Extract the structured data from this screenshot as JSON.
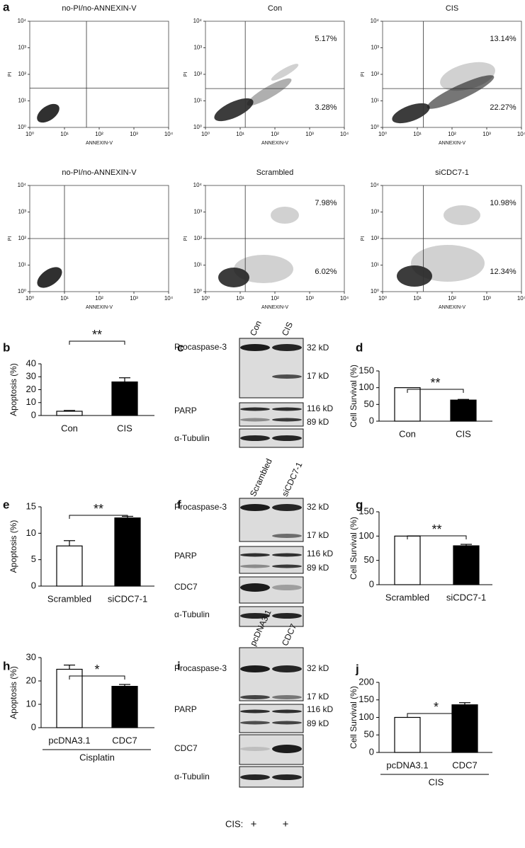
{
  "chart_data": [
    {
      "type": "flow",
      "panel": "a",
      "title": "no-PI/no-ANNEXIN-V",
      "x_label": "ANNEXIN-V",
      "y_label": "PI",
      "log_x": true,
      "log_y": true,
      "xlim": [
        1,
        10000
      ],
      "ylim": [
        1,
        10000
      ],
      "xticks": [
        {
          "value": 1,
          "label": "10⁰"
        },
        {
          "value": 10,
          "label": "10¹"
        },
        {
          "value": 100,
          "label": "10²"
        },
        {
          "value": 1000,
          "label": "10³"
        },
        {
          "value": 10000,
          "label": "10⁴"
        }
      ],
      "yticks": [
        {
          "value": 1,
          "label": "10⁰"
        },
        {
          "value": 10,
          "label": "10¹"
        },
        {
          "value": 100,
          "label": "10²"
        },
        {
          "value": 1000,
          "label": "10³"
        },
        {
          "value": 10000,
          "label": "10⁴"
        }
      ],
      "gate": [
        43,
        30
      ],
      "annotations": []
    },
    {
      "type": "flow",
      "title": "Con",
      "x_label": "ANNEXIN-V",
      "y_label": "PI",
      "log_x": true,
      "log_y": true,
      "xlim": [
        1,
        10000
      ],
      "ylim": [
        1,
        10000
      ],
      "xticks": [
        {
          "value": 1,
          "label": "10⁰"
        },
        {
          "value": 10,
          "label": "10¹"
        },
        {
          "value": 100,
          "label": "10²"
        },
        {
          "value": 1000,
          "label": "10³"
        },
        {
          "value": 10000,
          "label": "10⁴"
        }
      ],
      "yticks": [
        {
          "value": 1,
          "label": "10⁰"
        },
        {
          "value": 10,
          "label": "10¹"
        },
        {
          "value": 100,
          "label": "10²"
        },
        {
          "value": 1000,
          "label": "10³"
        },
        {
          "value": 10000,
          "label": "10⁴"
        }
      ],
      "gate": [
        14,
        29
      ],
      "annotations": [
        "5.17%",
        "3.28%"
      ]
    },
    {
      "type": "flow",
      "title": "CIS",
      "x_label": "ANNEXIN-V",
      "y_label": "PI",
      "log_x": true,
      "log_y": true,
      "xlim": [
        1,
        10000
      ],
      "ylim": [
        1,
        10000
      ],
      "xticks": [
        {
          "value": 1,
          "label": "10⁰"
        },
        {
          "value": 10,
          "label": "10¹"
        },
        {
          "value": 100,
          "label": "10²"
        },
        {
          "value": 1000,
          "label": "10³"
        },
        {
          "value": 10000,
          "label": "10⁴"
        }
      ],
      "yticks": [
        {
          "value": 1,
          "label": "10⁰"
        },
        {
          "value": 10,
          "label": "10¹"
        },
        {
          "value": 100,
          "label": "10²"
        },
        {
          "value": 1000,
          "label": "10³"
        },
        {
          "value": 10000,
          "label": "10⁴"
        }
      ],
      "gate": [
        15,
        29
      ],
      "annotations": [
        "13.14%",
        "22.27%"
      ]
    },
    {
      "type": "flow",
      "title": "no-PI/no-ANNEXIN-V",
      "x_label": "ANNEXIN-V",
      "y_label": "PI",
      "log_x": true,
      "log_y": true,
      "xlim": [
        1,
        10000
      ],
      "ylim": [
        1,
        10000
      ],
      "xticks": [
        {
          "value": 1,
          "label": "10⁰"
        },
        {
          "value": 10,
          "label": "10¹"
        },
        {
          "value": 100,
          "label": "10²"
        },
        {
          "value": 1000,
          "label": "10³"
        },
        {
          "value": 10000,
          "label": "10⁴"
        }
      ],
      "yticks": [
        {
          "value": 1,
          "label": "10⁰"
        },
        {
          "value": 10,
          "label": "10¹"
        },
        {
          "value": 100,
          "label": "10²"
        },
        {
          "value": 1000,
          "label": "10³"
        },
        {
          "value": 10000,
          "label": "10⁴"
        }
      ],
      "gate": [
        10,
        100
      ],
      "annotations": []
    },
    {
      "type": "flow",
      "title": "Scrambled",
      "x_label": "ANNEXIN-V",
      "y_label": "PI",
      "log_x": true,
      "log_y": true,
      "xlim": [
        1,
        10000
      ],
      "ylim": [
        1,
        10000
      ],
      "xticks": [
        {
          "value": 1,
          "label": "10⁰"
        },
        {
          "value": 10,
          "label": "10¹"
        },
        {
          "value": 100,
          "label": "10²"
        },
        {
          "value": 1000,
          "label": "10³"
        },
        {
          "value": 10000,
          "label": "10⁴"
        }
      ],
      "yticks": [
        {
          "value": 1,
          "label": "10⁰"
        },
        {
          "value": 10,
          "label": "10¹"
        },
        {
          "value": 100,
          "label": "10²"
        },
        {
          "value": 1000,
          "label": "10³"
        },
        {
          "value": 10000,
          "label": "10⁴"
        }
      ],
      "gate": [
        14,
        100
      ],
      "annotations": [
        "7.98%",
        "6.02%"
      ]
    },
    {
      "type": "flow",
      "title": "siCDC7-1",
      "x_label": "ANNEXIN-V",
      "y_label": "PI",
      "log_x": true,
      "log_y": true,
      "xlim": [
        1,
        10000
      ],
      "ylim": [
        1,
        10000
      ],
      "xticks": [
        {
          "value": 1,
          "label": "10⁰"
        },
        {
          "value": 10,
          "label": "10¹"
        },
        {
          "value": 100,
          "label": "10²"
        },
        {
          "value": 1000,
          "label": "10³"
        },
        {
          "value": 10000,
          "label": "10⁴"
        }
      ],
      "yticks": [
        {
          "value": 1,
          "label": "10⁰"
        },
        {
          "value": 10,
          "label": "10¹"
        },
        {
          "value": 100,
          "label": "10²"
        },
        {
          "value": 1000,
          "label": "10³"
        },
        {
          "value": 10000,
          "label": "10⁴"
        }
      ],
      "gate": [
        15,
        100
      ],
      "annotations": [
        "10.98%",
        "12.34%"
      ]
    },
    {
      "type": "bar",
      "panel": "b",
      "y_label": "Apoptosis (%)",
      "categories": [
        "Con",
        "CIS"
      ],
      "values": [
        3.3,
        26
      ],
      "errors": [
        0.6,
        3.2
      ],
      "colors": [
        "#ffffff",
        "#000000"
      ],
      "ylim": [
        0,
        40
      ],
      "yticks": [
        0,
        10,
        20,
        30,
        40
      ],
      "significance": "**"
    },
    {
      "type": "bar",
      "panel": "d",
      "y_label": "Cell Survival (%)",
      "categories": [
        "Con",
        "CIS"
      ],
      "values": [
        100,
        63
      ],
      "errors": [
        null,
        2
      ],
      "colors": [
        "#ffffff",
        "#000000"
      ],
      "ylim": [
        0,
        150
      ],
      "yticks": [
        0,
        50,
        100,
        150
      ],
      "significance": "**"
    },
    {
      "type": "bar",
      "panel": "e",
      "y_label": "Apoptosis (%)",
      "categories": [
        "Scrambled",
        "siCDC7-1"
      ],
      "values": [
        7.6,
        12.9
      ],
      "errors": [
        1.0,
        0.3
      ],
      "colors": [
        "#ffffff",
        "#000000"
      ],
      "ylim": [
        0,
        15
      ],
      "yticks": [
        0,
        5,
        10,
        15
      ],
      "significance": "**"
    },
    {
      "type": "bar",
      "panel": "g",
      "y_label": "Cell Survival (%)",
      "categories": [
        "Scrambled",
        "siCDC7-1"
      ],
      "values": [
        100,
        80
      ],
      "errors": [
        null,
        3
      ],
      "colors": [
        "#ffffff",
        "#000000"
      ],
      "ylim": [
        0,
        150
      ],
      "yticks": [
        0,
        50,
        100,
        150
      ],
      "significance": "**"
    },
    {
      "type": "bar",
      "panel": "h",
      "y_label": "Apoptosis (%)",
      "categories": [
        "pcDNA3.1",
        "CDC7"
      ],
      "values": [
        25,
        17.7
      ],
      "errors": [
        1.8,
        0.8
      ],
      "colors": [
        "#ffffff",
        "#000000"
      ],
      "ylim": [
        0,
        30
      ],
      "yticks": [
        0,
        10,
        20,
        30
      ],
      "significance": "*",
      "group_label": "Cisplatin"
    },
    {
      "type": "bar",
      "panel": "j",
      "y_label": "Cell Survival (%)",
      "categories": [
        "pcDNA3.1",
        "CDC7"
      ],
      "values": [
        100,
        136
      ],
      "errors": [
        null,
        6
      ],
      "colors": [
        "#ffffff",
        "#000000"
      ],
      "ylim": [
        0,
        200
      ],
      "yticks": [
        0,
        50,
        100,
        150,
        200
      ],
      "significance": "*",
      "group_label": "CIS"
    }
  ],
  "blots": [
    {
      "panel": "c",
      "lanes": [
        "Con",
        "CIS"
      ],
      "rows": [
        {
          "label": "Procaspase-3",
          "sizes": [
            "32 kD",
            "17 kD"
          ]
        },
        {
          "label": "PARP",
          "sizes": [
            "116 kD",
            "89 kD"
          ]
        },
        {
          "label": "α-Tubulin",
          "sizes": []
        }
      ]
    },
    {
      "panel": "f",
      "lanes": [
        "Scrambled",
        "siCDC7-1"
      ],
      "rows": [
        {
          "label": "Procaspase-3",
          "sizes": [
            "32 kD",
            "17 kD"
          ]
        },
        {
          "label": "PARP",
          "sizes": [
            "116 kD",
            "89 kD"
          ]
        },
        {
          "label": "CDC7",
          "sizes": []
        },
        {
          "label": "α-Tubulin",
          "sizes": []
        }
      ]
    },
    {
      "panel": "i",
      "lanes": [
        "pcDNA3.1",
        "CDC7"
      ],
      "rows": [
        {
          "label": "Procaspase-3",
          "sizes": [
            "32 kD",
            "17 kD"
          ]
        },
        {
          "label": "PARP",
          "sizes": [
            "116 kD",
            "89 kD"
          ]
        },
        {
          "label": "CDC7",
          "sizes": []
        },
        {
          "label": "α-Tubulin",
          "sizes": []
        }
      ],
      "treatment": {
        "label": "CIS:",
        "marks": [
          "+",
          "+"
        ]
      }
    }
  ]
}
